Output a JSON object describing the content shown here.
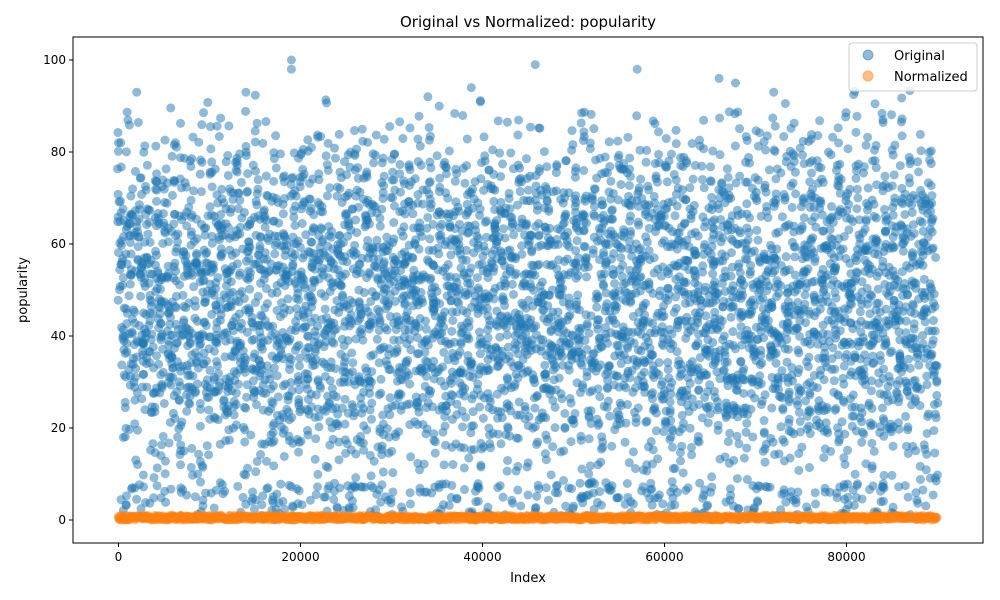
{
  "chart_data": {
    "type": "scatter",
    "title": "Original vs Normalized: popularity",
    "xlabel": "Index",
    "ylabel": "popularity",
    "xlim": [
      -5000,
      95000
    ],
    "ylim": [
      -5,
      105
    ],
    "xticks": [
      0,
      20000,
      40000,
      60000,
      80000
    ],
    "yticks": [
      0,
      20,
      40,
      60,
      80,
      100
    ],
    "x_count": 90000,
    "legend_position": "top-right",
    "grid": false,
    "series": [
      {
        "name": "Original",
        "color": "#1f77b4",
        "y_range": [
          0,
          100
        ],
        "sample_points": [
          {
            "x": 0,
            "y": 82
          },
          {
            "x": 2000,
            "y": 93
          },
          {
            "x": 14000,
            "y": 93
          },
          {
            "x": 19000,
            "y": 100
          },
          {
            "x": 19000,
            "y": 98
          },
          {
            "x": 45800,
            "y": 99
          },
          {
            "x": 57000,
            "y": 98
          },
          {
            "x": 67800,
            "y": 95
          },
          {
            "x": 72000,
            "y": 93
          },
          {
            "x": 84000,
            "y": 87
          },
          {
            "x": 66000,
            "y": 96
          },
          {
            "x": 34000,
            "y": 92
          },
          {
            "x": 1500,
            "y": 7
          },
          {
            "x": 28000,
            "y": 7
          },
          {
            "x": 47000,
            "y": 7
          }
        ]
      },
      {
        "name": "Normalized",
        "color": "#ff7f0e",
        "y_range": [
          0,
          1
        ],
        "sample_points": [
          {
            "x": 0,
            "y": 0.82
          },
          {
            "x": 19000,
            "y": 1.0
          },
          {
            "x": 45800,
            "y": 0.99
          },
          {
            "x": 60000,
            "y": 0.5
          },
          {
            "x": 89000,
            "y": 0.3
          }
        ]
      }
    ]
  }
}
